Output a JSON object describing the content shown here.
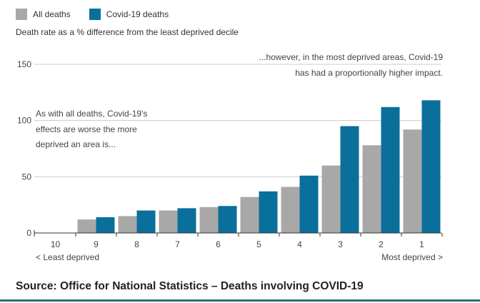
{
  "legend": {
    "all_deaths_label": "All deaths",
    "covid_label": "Covid-19 deaths"
  },
  "colors": {
    "all_deaths": "#a8a8a8",
    "covid": "#0b6f9b",
    "gridline": "#cccccc",
    "axis": "#333333"
  },
  "subtitle": "Death rate as a % difference from the least deprived decile",
  "annotations": {
    "left_lines": [
      "As with all deaths, Covid-19's",
      "effects are worse the more",
      "deprived an area is..."
    ],
    "right_lines": [
      "...however, in the most deprived areas, Covid-19",
      "has had a proportionally higher impact."
    ]
  },
  "axis_end_labels": {
    "left": "< Least deprived",
    "right": "Most deprived >"
  },
  "source": "Source: Office for National Statistics – Deaths involving COVID-19",
  "chart_data": {
    "type": "bar",
    "categories": [
      "10",
      "9",
      "8",
      "7",
      "6",
      "5",
      "4",
      "3",
      "2",
      "1"
    ],
    "series": [
      {
        "name": "All deaths",
        "values": [
          0,
          12,
          15,
          20,
          23,
          32,
          41,
          60,
          78,
          92
        ]
      },
      {
        "name": "Covid-19 deaths",
        "values": [
          0,
          14,
          20,
          22,
          24,
          37,
          51,
          95,
          112,
          118
        ]
      }
    ],
    "yticks": [
      0,
      50,
      100,
      150
    ],
    "ylim": [
      0,
      150
    ],
    "grid": true,
    "legend_position": "top-left"
  }
}
